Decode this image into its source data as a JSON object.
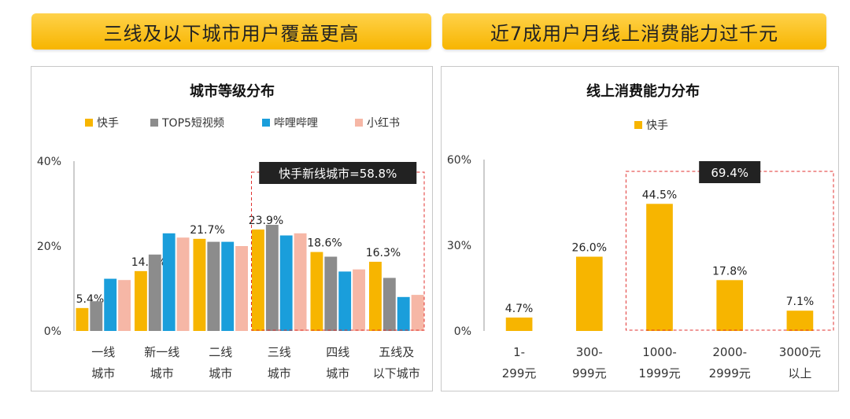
{
  "banners": {
    "left": "三线及以下城市用户覆盖更高",
    "right": "近7成用户月线上消费能力过千元"
  },
  "colors": {
    "kuaishou": "#f7b500",
    "top5": "#8c8c8c",
    "bilibili": "#1a9edb",
    "xiaohongshu": "#f6b7a6",
    "annotation_bg": "#222222",
    "annotation_border": "#e0312f"
  },
  "chart_data": [
    {
      "type": "bar",
      "title": "城市等级分布",
      "categories": [
        [
          "一线",
          "城市"
        ],
        [
          "新一线",
          "城市"
        ],
        [
          "二线",
          "城市"
        ],
        [
          "三线",
          "城市"
        ],
        [
          "四线",
          "城市"
        ],
        [
          "五线及",
          "以下城市"
        ]
      ],
      "series": [
        {
          "name": "快手",
          "color": "#f7b500",
          "values": [
            5.4,
            14.1,
            21.7,
            23.9,
            18.6,
            16.3
          ]
        },
        {
          "name": "TOP5短视频",
          "color": "#8c8c8c",
          "values": [
            7.0,
            18.0,
            21.0,
            25.0,
            17.5,
            12.5
          ]
        },
        {
          "name": "哔哩哔哩",
          "color": "#1a9edb",
          "values": [
            12.3,
            23.0,
            21.0,
            22.5,
            14.0,
            8.0
          ]
        },
        {
          "name": "小红书",
          "color": "#f6b7a6",
          "values": [
            12.0,
            22.0,
            20.0,
            23.0,
            14.5,
            8.5
          ]
        }
      ],
      "labeled_series": 0,
      "data_labels": [
        "5.4%",
        "14.1%",
        "21.7%",
        "23.9%",
        "18.6%",
        "16.3%"
      ],
      "yticks": [
        "0%",
        "20%",
        "40%"
      ],
      "ylim": [
        0,
        40
      ],
      "annotation": {
        "text": "快手新线城市=58.8%",
        "from_category": 3,
        "to_category": 5
      }
    },
    {
      "type": "bar",
      "title": "线上消费能力分布",
      "categories": [
        [
          "1-",
          "299元"
        ],
        [
          "300-",
          "999元"
        ],
        [
          "1000-",
          "1999元"
        ],
        [
          "2000-",
          "2999元"
        ],
        [
          "3000元",
          "以上"
        ]
      ],
      "series": [
        {
          "name": "快手",
          "color": "#f7b500",
          "values": [
            4.7,
            26.0,
            44.5,
            17.8,
            7.1
          ]
        }
      ],
      "labeled_series": 0,
      "data_labels": [
        "4.7%",
        "26.0%",
        "44.5%",
        "17.8%",
        "7.1%"
      ],
      "yticks": [
        "0%",
        "30%",
        "60%"
      ],
      "ylim": [
        0,
        60
      ],
      "annotation": {
        "text": "69.4%",
        "from_category": 2,
        "to_category": 4
      }
    }
  ]
}
